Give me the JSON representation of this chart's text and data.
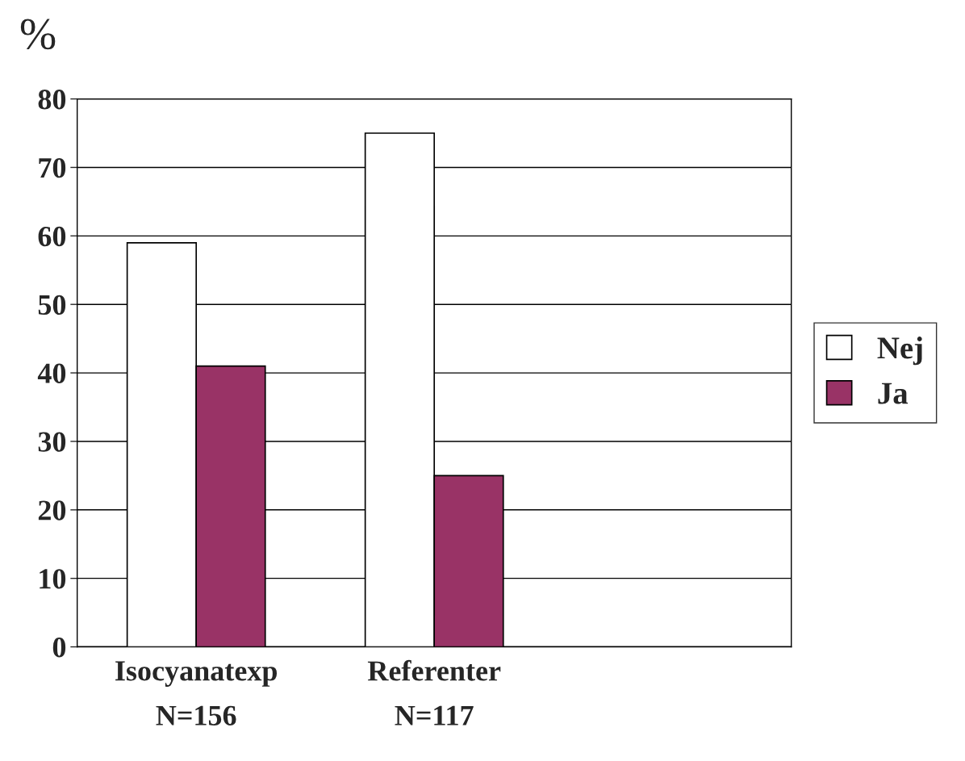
{
  "chart_data": {
    "type": "bar",
    "ylabel": "%",
    "categories": [
      "Isocyanatexp\nN=156",
      "Referenter\nN=117",
      null
    ],
    "series": [
      {
        "name": "Nej",
        "color": "#ffffff",
        "values": [
          59,
          75,
          null
        ]
      },
      {
        "name": "Ja",
        "color": "#993366",
        "values": [
          41,
          25,
          null
        ]
      }
    ],
    "ylim": [
      0,
      80
    ],
    "yticks": [
      0,
      10,
      20,
      30,
      40,
      50,
      60,
      70,
      80
    ],
    "grid": "y",
    "legend": "right"
  }
}
